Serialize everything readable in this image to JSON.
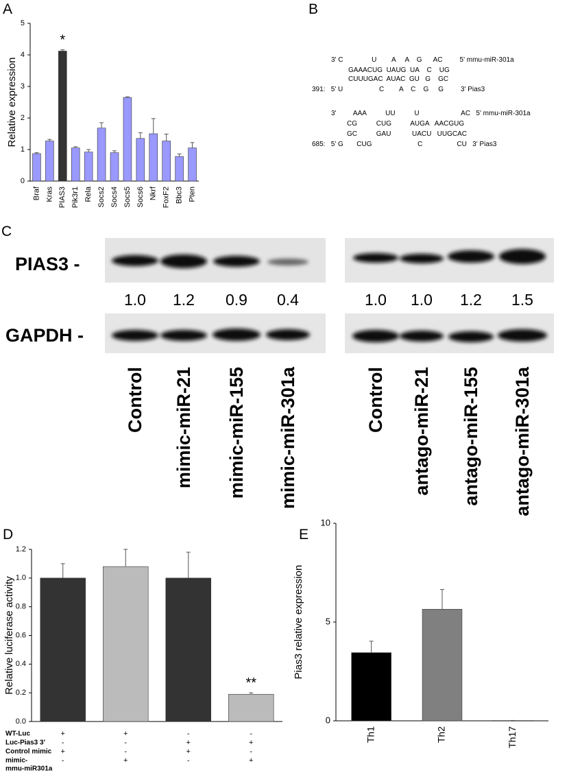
{
  "chart_data": [
    {
      "type": "bar",
      "panel": "A",
      "ylabel": "Relative expression",
      "categories": [
        "Braf",
        "Kras",
        "PIAS3",
        "Pik3r1",
        "Rela",
        "Socs2",
        "Socs4",
        "Socs5",
        "Socs6",
        "Nkrf",
        "FoxF2",
        "Bbc3",
        "Pten"
      ],
      "values": [
        0.87,
        1.27,
        4.12,
        1.05,
        0.92,
        1.68,
        0.9,
        2.65,
        1.35,
        1.5,
        1.27,
        0.78,
        1.05
      ],
      "errors": [
        0.03,
        0.05,
        0.04,
        0.04,
        0.08,
        0.17,
        0.06,
        0.02,
        0.18,
        0.48,
        0.22,
        0.08,
        0.17
      ],
      "colors": [
        "#9999ff",
        "#9999ff",
        "#333333",
        "#9999ff",
        "#9999ff",
        "#9999ff",
        "#9999ff",
        "#9999ff",
        "#9999ff",
        "#9999ff",
        "#9999ff",
        "#9999ff",
        "#9999ff"
      ],
      "value_annotations": [
        null,
        null,
        "*",
        null,
        null,
        null,
        null,
        null,
        null,
        null,
        null,
        null,
        null
      ],
      "ylim": [
        0,
        5
      ],
      "yticks": [
        0,
        1,
        2,
        3,
        4,
        5
      ]
    },
    {
      "type": "bar",
      "panel": "D",
      "ylabel": "Relative luciferase activity",
      "categories": [
        null,
        null,
        null,
        null
      ],
      "values": [
        1.0,
        1.08,
        1.0,
        0.19
      ],
      "errors": [
        0.1,
        0.12,
        0.18,
        0.01
      ],
      "colors": [
        "#333333",
        "#bbbbbb",
        "#333333",
        "#bbbbbb"
      ],
      "value_annotations": [
        null,
        null,
        null,
        "**"
      ],
      "ylim": [
        0,
        1.2
      ],
      "yticks": [
        {
          "value": 0,
          "label": "0.0"
        },
        {
          "value": 0.2,
          "label": "0.2"
        },
        {
          "value": 0.4,
          "label": "0.4"
        },
        {
          "value": 0.6,
          "label": "0.6"
        },
        {
          "value": 0.8,
          "label": "0.8"
        },
        {
          "value": 1,
          "label": "1.0"
        },
        {
          "value": 1.2,
          "label": "1.2"
        }
      ],
      "condition_table": [
        {
          "label_lines": [
            "WT-Luc"
          ],
          "signs": [
            "+",
            "+",
            "-",
            "-"
          ]
        },
        {
          "label_lines": [
            "Luc-Pias3 3'"
          ],
          "signs": [
            "-",
            "-",
            "+",
            "+"
          ]
        },
        {
          "label_lines": [
            "Control mimic"
          ],
          "signs": [
            "+",
            "-",
            "+",
            "-"
          ]
        },
        {
          "label_lines": [
            "mimic-",
            "mmu-miR301a"
          ],
          "signs": [
            "-",
            "+",
            "-",
            "+"
          ]
        }
      ]
    },
    {
      "type": "bar",
      "panel": "E",
      "ylabel": "Pias3 relative expression",
      "categories": [
        "Th1",
        "Th2",
        "Th17"
      ],
      "values": [
        3.45,
        5.65,
        0.02
      ],
      "errors": [
        0.58,
        1.0,
        0
      ],
      "colors": [
        "#000000",
        "#808080",
        "#cccccc"
      ],
      "ylim": [
        0,
        10
      ],
      "yticks": [
        0,
        5,
        10
      ]
    }
  ],
  "panel_b": {
    "panel": "B",
    "lines": [
      "3' C               U        A     A    G      AC         5' mmu-miR-301a",
      "GAAACUG  UAUG  UA    C    UG",
      "CUUUGAC  AUAC  GU   G    GC",
      "391:   5' U                   C        A    C    G     G         3' Pias3",
      "3'         AAA          UU          U                      AC   5' mmu-miR-301a",
      "CG          CUG          AUGA   AACGUG",
      "GC          GAU           UACU   UUGCAC",
      "685:   5' G       CUG                        C                  CU   3' Pias3"
    ]
  },
  "panel_c": {
    "panel": "C",
    "row_labels": [
      "PIAS3 -",
      "GAPDH -"
    ],
    "quantities": [
      "1.0",
      "1.2",
      "0.9",
      "0.4",
      "1.0",
      "1.0",
      "1.2",
      "1.5"
    ],
    "lanes": [
      "Control",
      "mimic-miR-21",
      "mimic-miR-155",
      "mimic-miR-301a",
      "Control",
      "antago-miR-21",
      "antago-miR-155",
      "antago-miR-301a"
    ]
  }
}
